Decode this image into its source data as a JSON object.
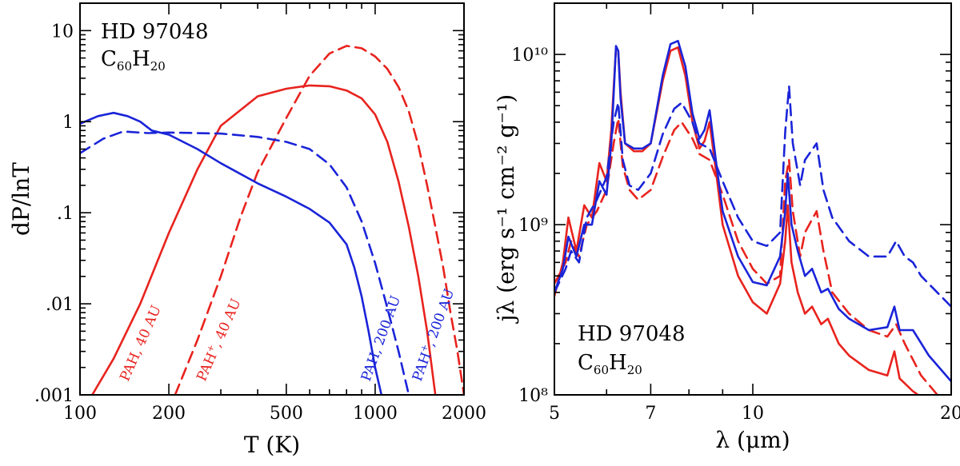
{
  "chart_data": [
    {
      "type": "line",
      "xscale": "log",
      "yscale": "log",
      "xlim": [
        100,
        2000
      ],
      "ylim": [
        0.001,
        20
      ],
      "xlabel": "T (K)",
      "ylabel": "dP/lnT",
      "xticks": [
        100,
        200,
        500,
        1000,
        2000
      ],
      "xtick_labels": [
        "100",
        "200",
        "500",
        "1000",
        "2000"
      ],
      "yticks": [
        0.001,
        0.01,
        0.1,
        1,
        10
      ],
      "ytick_labels": [
        ".001",
        ".01",
        ".1",
        "1",
        "10"
      ],
      "annotation_line1": "HD 97048",
      "annotation_line2": "C60H20",
      "series": [
        {
          "name": "PAH, 40 AU",
          "color": "#e8231e",
          "dash": "solid",
          "x": [
            110,
            130,
            160,
            200,
            250,
            300,
            400,
            500,
            600,
            700,
            800,
            900,
            1000,
            1100,
            1200,
            1300,
            1400,
            1500,
            1600
          ],
          "y": [
            0.001,
            0.0025,
            0.01,
            0.06,
            0.3,
            0.9,
            1.9,
            2.3,
            2.5,
            2.45,
            2.2,
            1.8,
            1.2,
            0.6,
            0.22,
            0.07,
            0.02,
            0.005,
            0.001
          ]
        },
        {
          "name": "PAH+, 40 AU",
          "color": "#e8231e",
          "dash": "dashed",
          "x": [
            210,
            250,
            300,
            350,
            400,
            500,
            600,
            700,
            800,
            900,
            1000,
            1100,
            1200,
            1300,
            1400,
            1500,
            1600,
            1700,
            1800,
            1900,
            2000
          ],
          "y": [
            0.001,
            0.004,
            0.02,
            0.09,
            0.28,
            1.1,
            3.2,
            5.6,
            6.8,
            6.4,
            5.2,
            3.8,
            2.4,
            1.3,
            0.55,
            0.2,
            0.07,
            0.025,
            0.008,
            0.003,
            0.001
          ]
        },
        {
          "name": "PAH, 200 AU",
          "color": "#1a24d8",
          "dash": "solid",
          "x": [
            100,
            115,
            130,
            145,
            160,
            175,
            200,
            250,
            300,
            400,
            500,
            600,
            700,
            800,
            850,
            900,
            950,
            1000,
            1050
          ],
          "y": [
            0.95,
            1.15,
            1.25,
            1.15,
            1.0,
            0.8,
            0.72,
            0.5,
            0.35,
            0.21,
            0.15,
            0.11,
            0.078,
            0.045,
            0.025,
            0.012,
            0.005,
            0.002,
            0.001
          ]
        },
        {
          "name": "PAH+, 200 AU",
          "color": "#1a24d8",
          "dash": "dashed",
          "x": [
            100,
            120,
            140,
            170,
            200,
            300,
            400,
            500,
            600,
            700,
            800,
            900,
            1000,
            1100,
            1200,
            1300
          ],
          "y": [
            0.45,
            0.65,
            0.78,
            0.75,
            0.76,
            0.74,
            0.68,
            0.6,
            0.5,
            0.34,
            0.19,
            0.08,
            0.028,
            0.009,
            0.003,
            0.001
          ]
        }
      ],
      "curve_labels": [
        "PAH, 40 AU",
        "PAH+, 40 AU",
        "PAH, 200 AU",
        "PAH+, 200 AU"
      ]
    },
    {
      "type": "line",
      "xscale": "log",
      "yscale": "log",
      "xlim": [
        5,
        20
      ],
      "ylim": [
        100000000.0,
        20000000000.0
      ],
      "xlabel": "λ (μm)",
      "ylabel": "jλ (erg s⁻¹ cm⁻² g⁻¹)",
      "xticks": [
        5,
        7,
        10,
        20
      ],
      "xtick_labels": [
        "5",
        "7",
        "10",
        "20"
      ],
      "yticks": [
        100000000.0,
        1000000000.0,
        10000000000.0
      ],
      "ytick_labels": [
        "10⁸",
        "10⁹",
        "10¹⁰"
      ],
      "annotation_line1": "HD 97048",
      "annotation_line2": "C60H20",
      "series": [
        {
          "name": "PAH, 40 AU",
          "color": "#e8231e",
          "dash": "solid",
          "x": [
            5.0,
            5.15,
            5.25,
            5.4,
            5.55,
            5.7,
            5.85,
            6.0,
            6.1,
            6.2,
            6.25,
            6.3,
            6.4,
            6.6,
            6.8,
            7.0,
            7.3,
            7.5,
            7.7,
            7.9,
            8.1,
            8.3,
            8.45,
            8.6,
            8.8,
            9.0,
            9.5,
            10.0,
            10.5,
            11.0,
            11.2,
            11.3,
            11.45,
            11.7,
            12.0,
            12.3,
            12.7,
            13.0,
            13.5,
            14.0,
            15.0,
            16.0,
            16.4,
            16.7,
            17.5,
            18.5,
            20.0
          ],
          "y": [
            380000000.0,
            600000000.0,
            1100000000.0,
            700000000.0,
            1300000000.0,
            1100000000.0,
            2300000000.0,
            1800000000.0,
            3600000000.0,
            11000000000.0,
            10500000000.0,
            6000000000.0,
            3000000000.0,
            2700000000.0,
            2700000000.0,
            3000000000.0,
            7000000000.0,
            10500000000.0,
            11000000000.0,
            7500000000.0,
            4000000000.0,
            2800000000.0,
            3100000000.0,
            4000000000.0,
            2000000000.0,
            1000000000.0,
            500000000.0,
            350000000.0,
            300000000.0,
            450000000.0,
            800000000.0,
            1300000000.0,
            600000000.0,
            400000000.0,
            300000000.0,
            330000000.0,
            260000000.0,
            280000000.0,
            200000000.0,
            170000000.0,
            140000000.0,
            130000000.0,
            180000000.0,
            125000000.0,
            105000000.0,
            90000000.0,
            80000000.0
          ]
        },
        {
          "name": "PAH+, 40 AU",
          "color": "#e8231e",
          "dash": "dashed",
          "x": [
            5.0,
            5.2,
            5.3,
            5.45,
            5.6,
            5.8,
            6.0,
            6.15,
            6.25,
            6.35,
            6.5,
            6.7,
            7.0,
            7.3,
            7.6,
            7.8,
            8.1,
            8.3,
            8.6,
            9.0,
            9.5,
            10.0,
            10.5,
            11.0,
            11.2,
            11.35,
            11.5,
            11.8,
            12.0,
            12.5,
            12.8,
            13.2,
            14.0,
            15.0,
            16.0,
            16.5,
            17.0,
            18.0,
            20.0
          ],
          "y": [
            450000000.0,
            600000000.0,
            800000000.0,
            650000000.0,
            1000000000.0,
            1200000000.0,
            1600000000.0,
            3000000000.0,
            4200000000.0,
            2200000000.0,
            1600000000.0,
            1400000000.0,
            1600000000.0,
            2500000000.0,
            3600000000.0,
            4000000000.0,
            3200000000.0,
            2600000000.0,
            2400000000.0,
            1500000000.0,
            800000000.0,
            550000000.0,
            450000000.0,
            500000000.0,
            1800000000.0,
            2400000000.0,
            1200000000.0,
            650000000.0,
            900000000.0,
            1200000000.0,
            700000000.0,
            400000000.0,
            300000000.0,
            240000000.0,
            220000000.0,
            260000000.0,
            200000000.0,
            130000000.0,
            80000000.0
          ]
        },
        {
          "name": "PAH, 200 AU",
          "color": "#1a24d8",
          "dash": "solid",
          "x": [
            5.0,
            5.15,
            5.25,
            5.4,
            5.55,
            5.7,
            5.85,
            6.0,
            6.1,
            6.2,
            6.25,
            6.3,
            6.4,
            6.6,
            6.8,
            7.0,
            7.3,
            7.5,
            7.7,
            7.9,
            8.1,
            8.3,
            8.45,
            8.6,
            8.8,
            9.0,
            9.5,
            10.0,
            10.5,
            11.0,
            11.2,
            11.3,
            11.45,
            11.7,
            12.0,
            12.3,
            12.7,
            13.0,
            13.5,
            14.0,
            15.0,
            16.0,
            16.4,
            16.7,
            17.5,
            18.5,
            20.0
          ],
          "y": [
            400000000.0,
            550000000.0,
            850000000.0,
            650000000.0,
            1000000000.0,
            1000000000.0,
            1800000000.0,
            1500000000.0,
            3000000000.0,
            11200000000.0,
            10500000000.0,
            5500000000.0,
            3000000000.0,
            2800000000.0,
            2800000000.0,
            3000000000.0,
            7500000000.0,
            11500000000.0,
            12000000000.0,
            8500000000.0,
            4500000000.0,
            3200000000.0,
            3600000000.0,
            4700000000.0,
            2300000000.0,
            1200000000.0,
            650000000.0,
            460000000.0,
            440000000.0,
            650000000.0,
            1200000000.0,
            2000000000.0,
            1000000000.0,
            700000000.0,
            500000000.0,
            550000000.0,
            400000000.0,
            420000000.0,
            320000000.0,
            280000000.0,
            240000000.0,
            250000000.0,
            330000000.0,
            240000000.0,
            240000000.0,
            170000000.0,
            120000000.0
          ]
        },
        {
          "name": "PAH+, 200 AU",
          "color": "#1a24d8",
          "dash": "dashed",
          "x": [
            5.0,
            5.2,
            5.3,
            5.45,
            5.6,
            5.8,
            6.0,
            6.15,
            6.25,
            6.35,
            6.5,
            6.7,
            7.0,
            7.3,
            7.6,
            7.8,
            8.1,
            8.3,
            8.6,
            9.0,
            9.5,
            10.0,
            10.5,
            11.0,
            11.2,
            11.35,
            11.5,
            11.8,
            12.0,
            12.5,
            12.8,
            13.2,
            14.0,
            15.0,
            16.0,
            16.5,
            17.0,
            17.5,
            18.0,
            20.0
          ],
          "y": [
            400000000.0,
            550000000.0,
            700000000.0,
            600000000.0,
            1100000000.0,
            1400000000.0,
            1900000000.0,
            4000000000.0,
            5200000000.0,
            2400000000.0,
            1700000000.0,
            1600000000.0,
            2000000000.0,
            3400000000.0,
            4800000000.0,
            5200000000.0,
            4000000000.0,
            3000000000.0,
            2800000000.0,
            1800000000.0,
            1100000000.0,
            800000000.0,
            750000000.0,
            900000000.0,
            3500000000.0,
            6500000000.0,
            3000000000.0,
            1700000000.0,
            2400000000.0,
            3000000000.0,
            1600000000.0,
            1100000000.0,
            800000000.0,
            650000000.0,
            650000000.0,
            800000000.0,
            650000000.0,
            600000000.0,
            500000000.0,
            330000000.0
          ]
        }
      ]
    }
  ]
}
